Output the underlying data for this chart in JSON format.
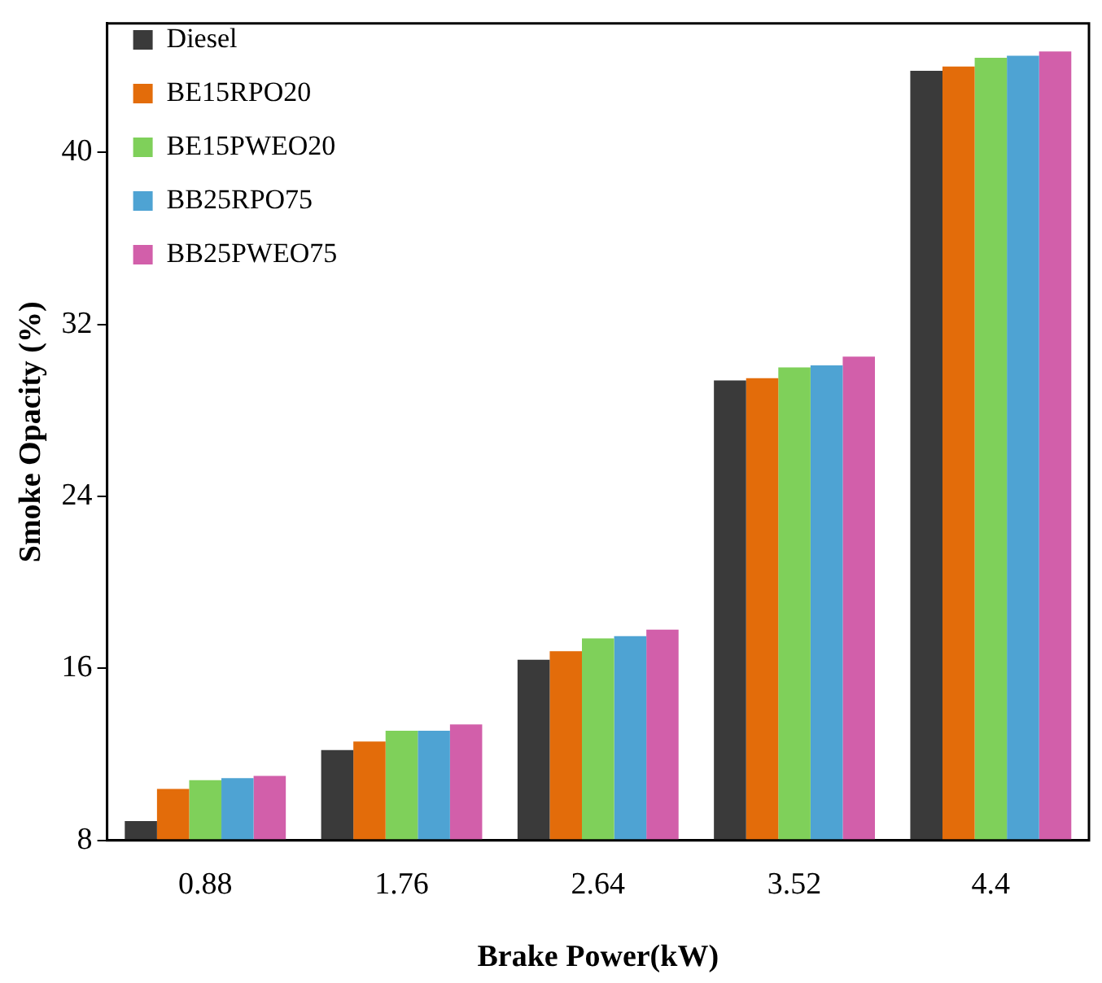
{
  "chart_data": {
    "type": "bar",
    "xlabel": "Brake Power(kW)",
    "ylabel": "Smoke Opacity (%)",
    "categories": [
      "0.88",
      "1.76",
      "2.64",
      "3.52",
      "4.4"
    ],
    "series": [
      {
        "name": "Diesel",
        "color": "#3a3a3a",
        "values": [
          8.9,
          12.2,
          16.4,
          29.4,
          43.8
        ]
      },
      {
        "name": "BE15RPO20",
        "color": "#e36c0a",
        "values": [
          10.4,
          12.6,
          16.8,
          29.5,
          44.0
        ]
      },
      {
        "name": "BE15PWEO20",
        "color": "#7fd05a",
        "values": [
          10.8,
          13.1,
          17.4,
          30.0,
          44.4
        ]
      },
      {
        "name": "BB25RPO75",
        "color": "#4ea3d3",
        "values": [
          10.9,
          13.1,
          17.5,
          30.1,
          44.5
        ]
      },
      {
        "name": "BB25PWEO75",
        "color": "#d25faa",
        "values": [
          11.0,
          13.4,
          17.8,
          30.5,
          44.7
        ]
      }
    ],
    "ylim": [
      8,
      46
    ],
    "yticks": [
      8,
      16,
      24,
      32,
      40
    ],
    "grid": false,
    "legend": "top left"
  }
}
